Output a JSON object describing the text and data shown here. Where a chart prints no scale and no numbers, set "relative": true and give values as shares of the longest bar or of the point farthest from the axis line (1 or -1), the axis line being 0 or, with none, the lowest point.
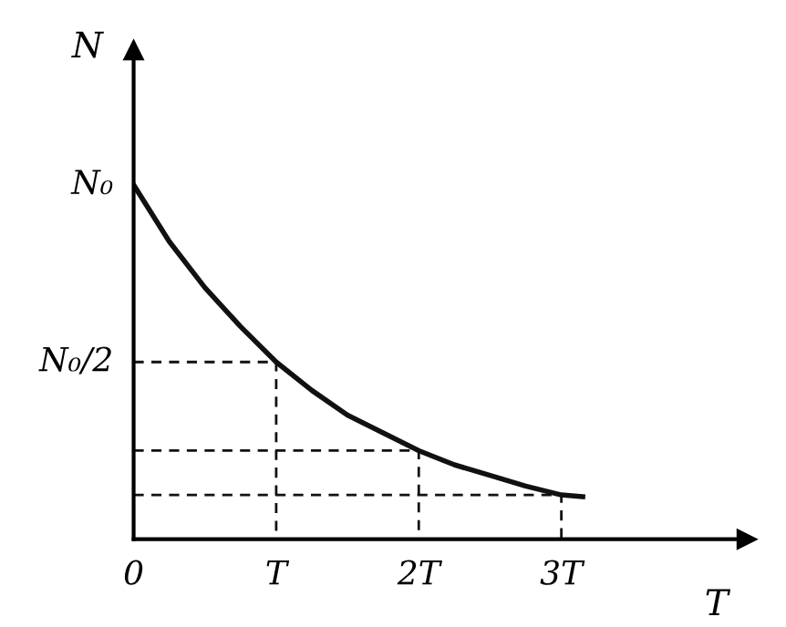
{
  "chart_data": {
    "type": "line",
    "xlabel": "T",
    "ylabel": "N",
    "xlim": [
      0,
      4.3
    ],
    "relative": true,
    "annotations": [
      {
        "text": "N₀",
        "x": 0,
        "y": 1
      },
      {
        "text": "N₀/2",
        "x": 0,
        "y": 0.5
      }
    ],
    "xticks": [
      {
        "value": 0,
        "label": "0"
      },
      {
        "value": 1,
        "label": "T"
      },
      {
        "value": 2,
        "label": "2T"
      },
      {
        "value": 3,
        "label": "3T"
      }
    ],
    "grid": false,
    "legend": false,
    "marker": "none",
    "series": [
      {
        "color": "#111111",
        "line_style": "solid",
        "x": [
          0,
          0.25,
          0.5,
          0.75,
          1,
          1.25,
          1.5,
          1.75,
          2,
          2.25,
          2.5,
          2.75,
          3,
          3.15
        ],
        "values": [
          1,
          0.84,
          0.71,
          0.6,
          0.5,
          0.42,
          0.35,
          0.3,
          0.25,
          0.21,
          0.18,
          0.15,
          0.125,
          0.12
        ]
      },
      {
        "color": "#111111",
        "line_style": "dashed",
        "x": [
          0,
          1,
          1
        ],
        "values": [
          0.5,
          0.5,
          0
        ]
      },
      {
        "color": "#111111",
        "line_style": "dashed",
        "x": [
          0,
          2,
          2
        ],
        "values": [
          0.25,
          0.25,
          0
        ]
      },
      {
        "color": "#111111",
        "line_style": "dashed",
        "x": [
          0,
          3,
          3
        ],
        "values": [
          0.125,
          0.125,
          0
        ]
      }
    ]
  }
}
